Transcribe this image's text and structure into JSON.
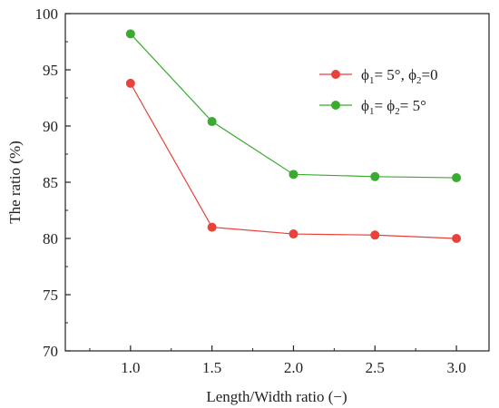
{
  "chart_data": {
    "type": "line",
    "x": [
      1.0,
      1.5,
      2.0,
      2.5,
      3.0
    ],
    "x_tick_labels": [
      "1.0",
      "1.5",
      "2.0",
      "2.5",
      "3.0"
    ],
    "y_tick_labels": [
      "70",
      "75",
      "80",
      "85",
      "90",
      "95",
      "100"
    ],
    "xlabel": "Length/Width ratio (−)",
    "ylabel": "The ratio (%)",
    "xlim": [
      0.6,
      3.2
    ],
    "ylim": [
      70,
      100
    ],
    "grid": false,
    "legend_position": "top-right",
    "series": [
      {
        "name": "ϕ₁= 5°, ϕ₂=0",
        "legend_parts": [
          "ϕ",
          "1",
          "= 5°, ϕ",
          "2",
          "=0"
        ],
        "color": "#e8423a",
        "values": [
          93.8,
          81.0,
          80.4,
          80.3,
          80.0
        ]
      },
      {
        "name": "ϕ₁= ϕ₂= 5°",
        "legend_parts": [
          "ϕ",
          "1",
          "= ϕ",
          "2",
          "= 5°"
        ],
        "color": "#3aab2e",
        "values": [
          98.2,
          90.4,
          85.7,
          85.5,
          85.4
        ]
      }
    ]
  }
}
